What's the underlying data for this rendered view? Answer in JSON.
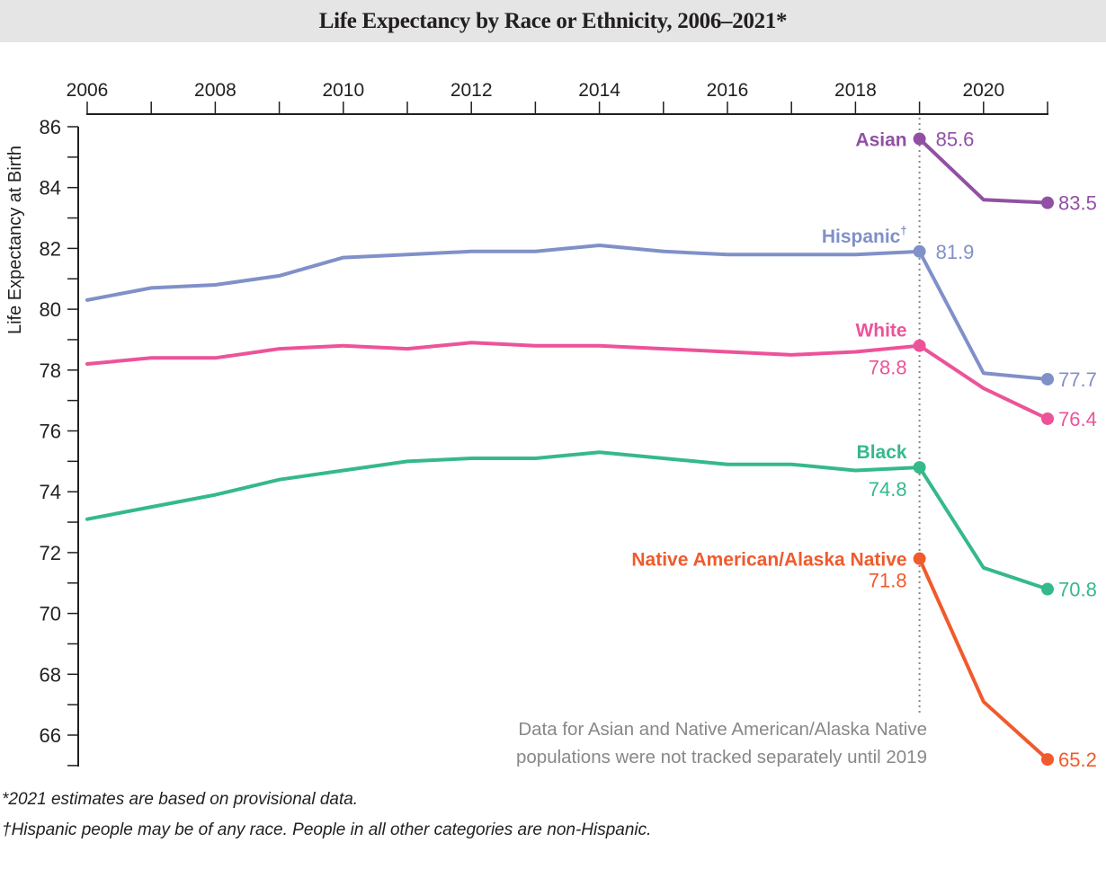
{
  "chart_data": {
    "type": "line",
    "title": "Life Expectancy by Race or Ethnicity, 2006–2021*",
    "xlabel": "",
    "ylabel": "Life Expectancy at Birth",
    "xlim": [
      2006,
      2021
    ],
    "ylim": [
      65,
      86
    ],
    "x_ticks": [
      2006,
      2008,
      2010,
      2012,
      2014,
      2016,
      2018,
      2020
    ],
    "x_tick_labels": [
      "2006",
      "2008",
      "2010",
      "2012",
      "2014",
      "2016",
      "2018",
      "2020"
    ],
    "y_ticks": [
      66,
      68,
      70,
      72,
      74,
      76,
      78,
      80,
      82,
      84,
      86
    ],
    "y_tick_labels": [
      "66",
      "68",
      "70",
      "72",
      "74",
      "76",
      "78",
      "80",
      "82",
      "84",
      "86"
    ],
    "grid": false,
    "legend": "inline labels",
    "series": [
      {
        "name": "Hispanic",
        "label": "Hispanic",
        "label_mark": "†",
        "color": "#8090c8",
        "x": [
          2006,
          2007,
          2008,
          2009,
          2010,
          2011,
          2012,
          2013,
          2014,
          2015,
          2016,
          2017,
          2018,
          2019,
          2020,
          2021
        ],
        "values": [
          80.3,
          80.7,
          80.8,
          81.1,
          81.7,
          81.8,
          81.9,
          81.9,
          82.1,
          81.9,
          81.8,
          81.8,
          81.8,
          81.9,
          77.9,
          77.7
        ],
        "value_labels": {
          "2019": "81.9",
          "2021": "77.7"
        }
      },
      {
        "name": "White",
        "label": "White",
        "color": "#ec539a",
        "x": [
          2006,
          2007,
          2008,
          2009,
          2010,
          2011,
          2012,
          2013,
          2014,
          2015,
          2016,
          2017,
          2018,
          2019,
          2020,
          2021
        ],
        "values": [
          78.2,
          78.4,
          78.4,
          78.7,
          78.8,
          78.7,
          78.9,
          78.8,
          78.8,
          78.7,
          78.6,
          78.5,
          78.6,
          78.8,
          77.4,
          76.4
        ],
        "value_labels": {
          "2019": "78.8",
          "2021": "76.4"
        }
      },
      {
        "name": "Black",
        "label": "Black",
        "color": "#35b98a",
        "x": [
          2006,
          2007,
          2008,
          2009,
          2010,
          2011,
          2012,
          2013,
          2014,
          2015,
          2016,
          2017,
          2018,
          2019,
          2020,
          2021
        ],
        "values": [
          73.1,
          73.5,
          73.9,
          74.4,
          74.7,
          75.0,
          75.1,
          75.1,
          75.3,
          75.1,
          74.9,
          74.9,
          74.7,
          74.8,
          71.5,
          70.8
        ],
        "value_labels": {
          "2019": "74.8",
          "2021": "70.8"
        }
      },
      {
        "name": "Asian",
        "label": "Asian",
        "color": "#9150a4",
        "x": [
          2019,
          2020,
          2021
        ],
        "values": [
          85.6,
          83.6,
          83.5
        ],
        "value_labels": {
          "2019": "85.6",
          "2021": "83.5"
        }
      },
      {
        "name": "Native American/Alaska Native",
        "label": "Native American/Alaska Native",
        "color": "#f05a2c",
        "x": [
          2019,
          2020,
          2021
        ],
        "values": [
          71.8,
          67.1,
          65.2
        ],
        "value_labels": {
          "2019": "71.8",
          "2021": "65.2"
        }
      }
    ],
    "reference_line": {
      "x": 2019,
      "style": "dotted",
      "color": "#888888"
    },
    "annotation": {
      "lines": [
        "Data for Asian and Native American/Alaska Native",
        "populations were not tracked separately until 2019"
      ],
      "color": "#888888"
    },
    "footnotes": [
      "*2021 estimates are based on provisional data.",
      "†Hispanic people may be of any race. People in all other categories are non-Hispanic."
    ]
  }
}
